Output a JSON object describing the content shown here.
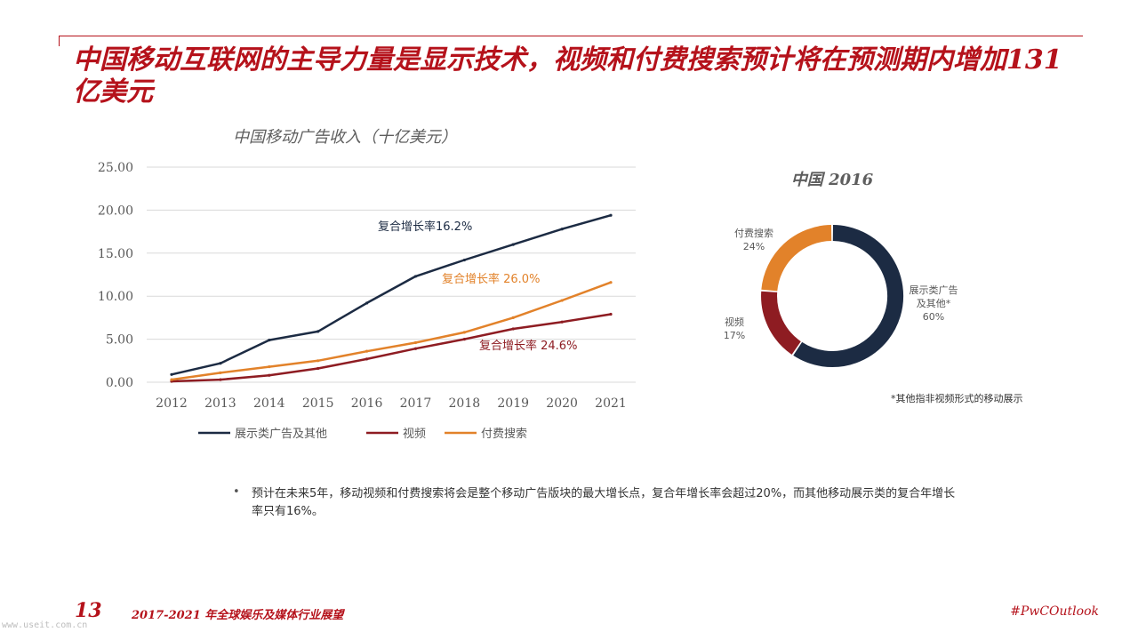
{
  "slide": {
    "title": "中国移动互联网的主导力量是显示技术，视频和付费搜索预计将在预测期内增加131 亿美元",
    "bullet_text": "预计在未来5年，移动视频和付费搜索将会是整个移动广告版块的最大增长点，复合年增长率会超过20%，而其他移动展示类的复合年增长率只有16%。",
    "bullet_symbol": "•"
  },
  "footer": {
    "page_number": "13",
    "report_title": "2017-2021 年全球娱乐及媒体行业展望",
    "hashtag": "#PwCOutlook",
    "watermark": "www.useit.com.cn"
  },
  "colors": {
    "brand": "#b5121b",
    "display": "#1c2b43",
    "video": "#8e1c22",
    "search": "#e2822a"
  },
  "chart_data": [
    {
      "type": "line",
      "title": "中国移动广告收入（十亿美元）",
      "x": [
        "2012",
        "2013",
        "2014",
        "2015",
        "2016",
        "2017",
        "2018",
        "2019",
        "2020",
        "2021"
      ],
      "ylim": [
        0,
        25
      ],
      "yticks": [
        "0.00",
        "5.00",
        "10.00",
        "15.00",
        "20.00",
        "25.00"
      ],
      "grid": true,
      "legend_position": "bottom",
      "series": [
        {
          "name": "展示类广告及其他",
          "color": "#1c2b43",
          "values": [
            0.9,
            2.2,
            4.9,
            5.9,
            9.2,
            12.3,
            14.2,
            16.0,
            17.8,
            19.4
          ]
        },
        {
          "name": "视频",
          "color": "#8e1c22",
          "values": [
            0.1,
            0.3,
            0.8,
            1.6,
            2.7,
            3.9,
            5.0,
            6.2,
            7.0,
            7.9
          ]
        },
        {
          "name": "付费搜索",
          "color": "#e2822a",
          "values": [
            0.3,
            1.1,
            1.8,
            2.5,
            3.6,
            4.6,
            5.8,
            7.5,
            9.5,
            11.6
          ]
        }
      ],
      "annotations": [
        {
          "text": "复合增长率16.2%",
          "color": "#1c2b43"
        },
        {
          "text": "复合增长率 26.0%",
          "color": "#e2822a"
        },
        {
          "text": "复合增长率 24.6%",
          "color": "#8e1c22"
        }
      ]
    },
    {
      "type": "pie",
      "title": "中国 2016",
      "slices": [
        {
          "label": "展示类广告及其他*",
          "value": 60,
          "value_label": "60%",
          "color": "#1c2b43"
        },
        {
          "label": "视频",
          "value": 17,
          "value_label": "17%",
          "color": "#8e1c22"
        },
        {
          "label": "付费搜索",
          "value": 24,
          "value_label": "24%",
          "color": "#e2822a"
        }
      ],
      "footnote": "*其他指非视频形式的移动展示"
    }
  ]
}
